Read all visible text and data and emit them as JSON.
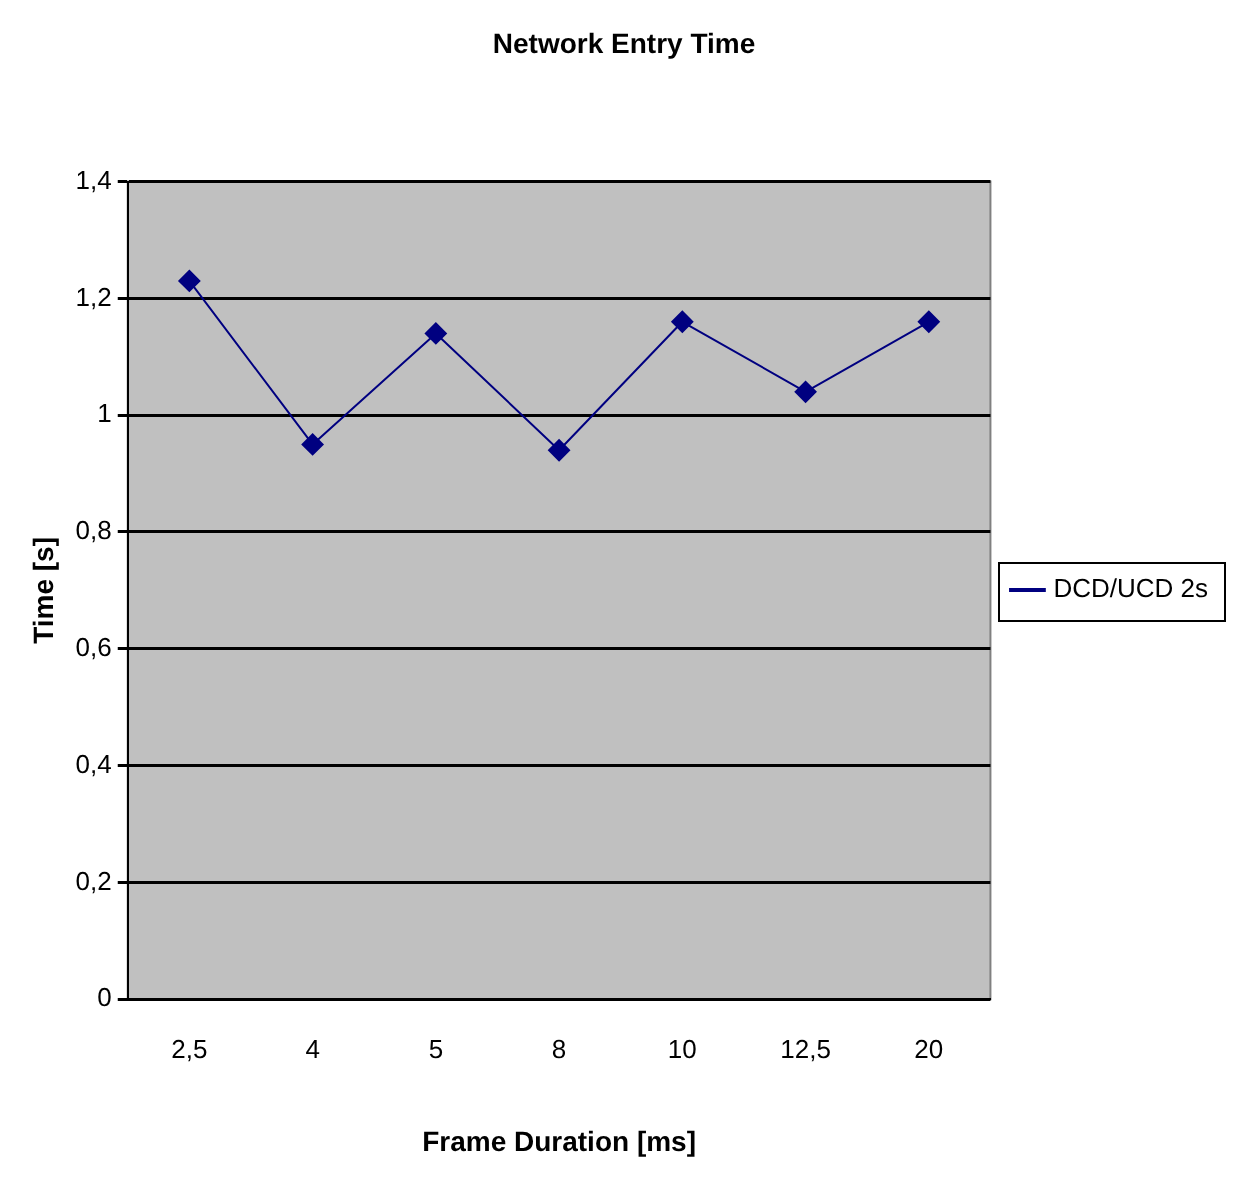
{
  "chart_data": {
    "type": "line",
    "title": "Network Entry Time",
    "xlabel": "Frame Duration [ms]",
    "ylabel": "Time [s]",
    "categories": [
      "2,5",
      "4",
      "5",
      "8",
      "10",
      "12,5",
      "20"
    ],
    "series": [
      {
        "name": "DCD/UCD 2s",
        "color": "#000080",
        "values": [
          1.23,
          0.95,
          1.14,
          0.94,
          1.16,
          1.04,
          1.16
        ]
      }
    ],
    "ylim": [
      0,
      1.4
    ],
    "yticks": [
      0,
      {
        "value": 0.2,
        "label": "0,2"
      },
      {
        "value": 0.4,
        "label": "0,4"
      },
      {
        "value": 0.6,
        "label": "0,6"
      },
      {
        "value": 0.8,
        "label": "0,8"
      },
      1,
      {
        "value": 1.2,
        "label": "1,2"
      },
      {
        "value": 1.4,
        "label": "1,4"
      }
    ],
    "grid": "y",
    "legend": "right",
    "marker": "diamond",
    "line_style": "solid"
  }
}
